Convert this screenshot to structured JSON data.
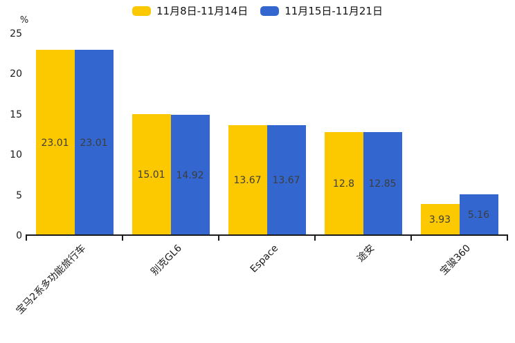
{
  "chart_data": {
    "type": "bar",
    "title": "",
    "unit_label": "%",
    "categories": [
      "宝马2系多功能旅行车",
      "别克GL6",
      "Espace",
      "途安",
      "宝骏360"
    ],
    "series": [
      {
        "name": "11月8日-11月14日",
        "color": "#FCC800",
        "values": [
          23.01,
          15.01,
          13.67,
          12.8,
          3.93
        ]
      },
      {
        "name": "11月15日-11月21日",
        "color": "#3366CE",
        "values": [
          23.01,
          14.92,
          13.67,
          12.85,
          5.16
        ]
      }
    ],
    "yticks": [
      0,
      5,
      10,
      15,
      20,
      25
    ],
    "ylim": [
      0,
      25
    ],
    "grid": false,
    "legend_position": "top",
    "value_labels_position": "inside-middle",
    "axis_color": "#1a1a1a",
    "value_label_color": "#3d3d3d"
  }
}
